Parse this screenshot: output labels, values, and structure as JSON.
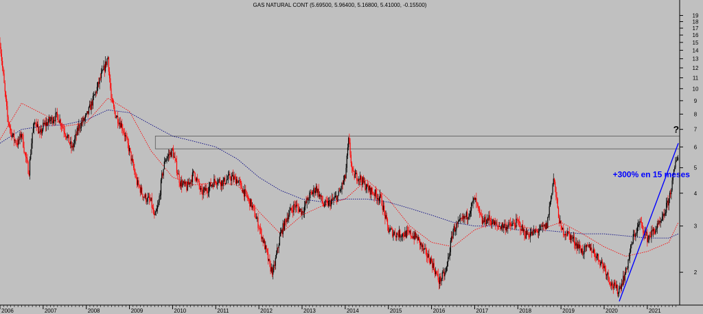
{
  "chart_data": {
    "type": "candlestick",
    "title": "GAS NATURAL CONT (5.69500, 5.96400, 5.16800, 5.41000, -0.15500)",
    "xlabel": "",
    "ylabel": "",
    "y_scale": "log",
    "ylim": [
      1.5,
      20
    ],
    "xlim": [
      2006.0,
      2021.75
    ],
    "grid": false,
    "y_ticks": [
      2,
      3,
      4,
      5,
      6,
      7,
      8,
      9,
      10,
      11,
      12,
      13,
      14,
      15,
      16,
      17,
      18,
      19
    ],
    "x_ticks": [
      "2006",
      "2007",
      "2008",
      "2009",
      "2010",
      "2011",
      "2012",
      "2013",
      "2014",
      "2015",
      "2016",
      "2017",
      "2018",
      "2019",
      "2020",
      "2021"
    ],
    "price_series": {
      "name": "",
      "x": [
        2006.0,
        2006.08,
        2006.17,
        2006.25,
        2006.33,
        2006.42,
        2006.5,
        2006.58,
        2006.67,
        2006.75,
        2006.83,
        2006.92,
        2007.0,
        2007.17,
        2007.33,
        2007.5,
        2007.67,
        2007.83,
        2008.0,
        2008.17,
        2008.33,
        2008.42,
        2008.5,
        2008.58,
        2008.67,
        2008.83,
        2009.0,
        2009.17,
        2009.33,
        2009.5,
        2009.58,
        2009.67,
        2009.75,
        2009.83,
        2010.0,
        2010.17,
        2010.33,
        2010.5,
        2010.67,
        2010.83,
        2011.0,
        2011.17,
        2011.33,
        2011.5,
        2011.67,
        2011.83,
        2012.0,
        2012.17,
        2012.25,
        2012.33,
        2012.5,
        2012.67,
        2012.83,
        2013.0,
        2013.17,
        2013.33,
        2013.5,
        2013.67,
        2013.83,
        2014.0,
        2014.08,
        2014.17,
        2014.33,
        2014.5,
        2014.67,
        2014.83,
        2015.0,
        2015.17,
        2015.33,
        2015.5,
        2015.67,
        2015.83,
        2016.0,
        2016.17,
        2016.33,
        2016.5,
        2016.67,
        2016.83,
        2017.0,
        2017.17,
        2017.33,
        2017.5,
        2017.67,
        2017.83,
        2018.0,
        2018.17,
        2018.33,
        2018.5,
        2018.67,
        2018.83,
        2018.92,
        2019.0,
        2019.17,
        2019.33,
        2019.5,
        2019.67,
        2019.83,
        2020.0,
        2020.17,
        2020.33,
        2020.5,
        2020.67,
        2020.83,
        2021.0,
        2021.17,
        2021.33,
        2021.5,
        2021.58,
        2021.67,
        2021.72
      ],
      "y": [
        15.0,
        11.0,
        7.8,
        6.9,
        6.4,
        6.2,
        6.8,
        5.6,
        4.8,
        6.8,
        7.6,
        6.6,
        7.2,
        7.6,
        7.9,
        6.9,
        5.9,
        7.2,
        7.8,
        9.2,
        11.0,
        12.0,
        13.2,
        9.0,
        8.0,
        7.2,
        5.8,
        4.4,
        3.9,
        3.7,
        3.2,
        3.6,
        4.6,
        5.4,
        5.8,
        4.4,
        4.2,
        4.8,
        4.0,
        4.2,
        4.5,
        4.4,
        4.6,
        4.5,
        4.0,
        3.6,
        3.0,
        2.4,
        2.1,
        2.0,
        2.8,
        3.3,
        3.6,
        3.4,
        3.9,
        4.2,
        3.6,
        3.7,
        3.9,
        4.6,
        6.4,
        4.7,
        4.6,
        4.2,
        4.0,
        3.8,
        2.9,
        2.8,
        2.8,
        2.8,
        2.7,
        2.4,
        2.2,
        1.85,
        2.0,
        2.9,
        3.1,
        3.3,
        3.8,
        3.1,
        3.2,
        3.0,
        3.0,
        3.0,
        3.1,
        2.8,
        2.8,
        2.9,
        3.0,
        4.6,
        3.5,
        2.9,
        2.8,
        2.6,
        2.4,
        2.5,
        2.3,
        2.1,
        1.8,
        1.7,
        2.0,
        2.7,
        3.1,
        2.7,
        2.9,
        3.1,
        3.8,
        4.4,
        5.4,
        5.6
      ]
    },
    "moving_averages": [
      {
        "name": "",
        "color": "#ff0000",
        "style": "dotted",
        "x": [
          2006.0,
          2006.5,
          2007.0,
          2007.5,
          2008.0,
          2008.5,
          2009.0,
          2009.5,
          2010.0,
          2010.5,
          2011.0,
          2011.5,
          2012.0,
          2012.5,
          2013.0,
          2013.5,
          2014.0,
          2014.5,
          2015.0,
          2015.5,
          2016.0,
          2016.5,
          2017.0,
          2017.5,
          2018.0,
          2018.5,
          2019.0,
          2019.5,
          2020.0,
          2020.5,
          2021.0,
          2021.5,
          2021.72
        ],
        "y": [
          6.4,
          8.8,
          8.0,
          7.2,
          7.4,
          9.2,
          8.2,
          5.8,
          4.6,
          4.3,
          4.4,
          4.3,
          3.4,
          2.8,
          3.3,
          3.6,
          3.8,
          4.5,
          3.8,
          3.0,
          2.6,
          2.5,
          2.9,
          3.1,
          3.0,
          2.9,
          3.1,
          2.8,
          2.5,
          2.3,
          2.4,
          2.6,
          3.1
        ]
      },
      {
        "name": "",
        "color": "#000080",
        "style": "dotted",
        "x": [
          2006.0,
          2006.5,
          2007.0,
          2007.5,
          2008.0,
          2008.5,
          2009.0,
          2009.5,
          2010.0,
          2010.5,
          2011.0,
          2011.5,
          2012.0,
          2012.5,
          2013.0,
          2013.5,
          2014.0,
          2014.5,
          2015.0,
          2015.5,
          2016.0,
          2016.5,
          2017.0,
          2017.5,
          2018.0,
          2018.5,
          2019.0,
          2019.5,
          2020.0,
          2020.5,
          2021.0,
          2021.5,
          2021.72
        ],
        "y": [
          6.2,
          7.0,
          7.2,
          7.3,
          7.6,
          8.3,
          8.1,
          7.3,
          6.6,
          6.3,
          6.0,
          5.4,
          4.6,
          4.1,
          3.8,
          3.7,
          3.8,
          3.8,
          3.7,
          3.5,
          3.3,
          3.1,
          3.0,
          3.0,
          2.9,
          2.9,
          2.85,
          2.8,
          2.8,
          2.75,
          2.7,
          2.7,
          2.8
        ]
      }
    ],
    "resistance_box": {
      "x": [
        2009.6,
        2021.75
      ],
      "y": [
        5.9,
        6.6
      ]
    },
    "trend_line": {
      "x": [
        2020.35,
        2021.72
      ],
      "y": [
        1.55,
        6.2
      ],
      "color": "#0000ff"
    },
    "annotations": [
      {
        "text": "+300% en 15 meses",
        "x": 2020.2,
        "y": 4.6,
        "color": "#0000ff"
      },
      {
        "text": "?",
        "x": 2021.6,
        "y": 6.8,
        "color": "#000000"
      }
    ]
  }
}
